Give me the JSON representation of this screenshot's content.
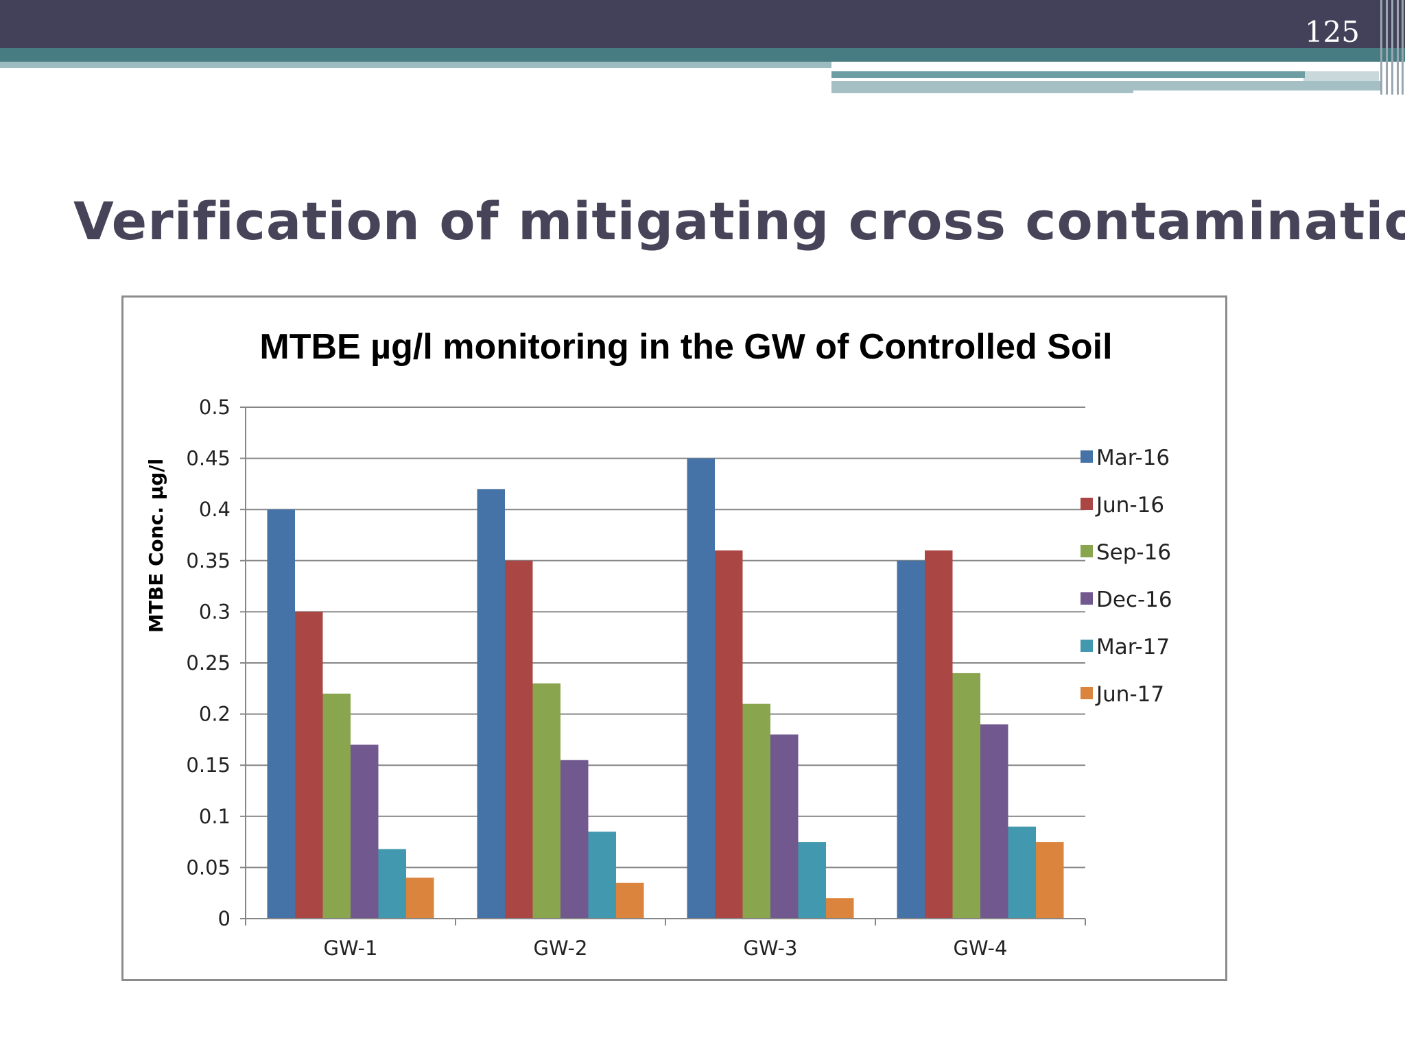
{
  "slide": {
    "number": "125",
    "title": "Verification of mitigating cross contamination"
  },
  "colors": {
    "header_band": "#434159",
    "title_text": "#474459",
    "accent_teal": "#487c83"
  },
  "chart_data": {
    "type": "bar",
    "title": "MTBE µg/l monitoring in the GW of Controlled Soil",
    "xlabel": "",
    "ylabel": "MTBE Conc. µg/l",
    "categories": [
      "GW-1",
      "GW-2",
      "GW-3",
      "GW-4"
    ],
    "ylim": [
      0,
      0.5
    ],
    "yticks": [
      "0",
      "0.05",
      "0.1",
      "0.15",
      "0.2",
      "0.25",
      "0.3",
      "0.35",
      "0.4",
      "0.45",
      "0.5"
    ],
    "grid": true,
    "legend_position": "right",
    "series": [
      {
        "name": "Mar-16",
        "color": "#4572a7",
        "values": [
          0.4,
          0.42,
          0.45,
          0.35
        ]
      },
      {
        "name": "Jun-16",
        "color": "#aa4643",
        "values": [
          0.3,
          0.35,
          0.36,
          0.36
        ]
      },
      {
        "name": "Sep-16",
        "color": "#89a54e",
        "values": [
          0.22,
          0.23,
          0.21,
          0.24
        ]
      },
      {
        "name": "Dec-16",
        "color": "#71588f",
        "values": [
          0.17,
          0.155,
          0.18,
          0.19
        ]
      },
      {
        "name": "Mar-17",
        "color": "#4198af",
        "values": [
          0.068,
          0.085,
          0.075,
          0.09
        ]
      },
      {
        "name": "Jun-17",
        "color": "#db843d",
        "values": [
          0.04,
          0.035,
          0.02,
          0.075
        ]
      }
    ]
  }
}
